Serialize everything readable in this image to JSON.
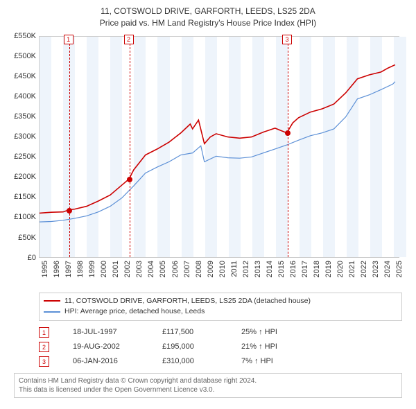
{
  "title_line1": "11, COTSWOLD DRIVE, GARFORTH, LEEDS, LS25 2DA",
  "title_line2": "Price paid vs. HM Land Registry's House Price Index (HPI)",
  "chart": {
    "type": "line",
    "xlim": [
      1995,
      2025.5
    ],
    "ylim": [
      0,
      550000
    ],
    "ytick_step": 50000,
    "ylabels": [
      "£0",
      "£50K",
      "£100K",
      "£150K",
      "£200K",
      "£250K",
      "£300K",
      "£350K",
      "£400K",
      "£450K",
      "£500K",
      "£550K"
    ],
    "xlabels": [
      "1995",
      "1996",
      "1997",
      "1998",
      "1999",
      "2000",
      "2001",
      "2002",
      "2003",
      "2004",
      "2005",
      "2006",
      "2007",
      "2008",
      "2009",
      "2010",
      "2011",
      "2012",
      "2013",
      "2014",
      "2015",
      "2016",
      "2017",
      "2018",
      "2019",
      "2020",
      "2021",
      "2022",
      "2023",
      "2024",
      "2025"
    ],
    "band_color": "#eef4fb",
    "grid_color": "#cccccc",
    "series": {
      "property": {
        "label": "11, COTSWOLD DRIVE, GARFORTH, LEEDS, LS25 2DA (detached house)",
        "color": "#cc0000",
        "width": 1.6,
        "data": [
          [
            1995,
            110000
          ],
          [
            1996,
            112000
          ],
          [
            1997,
            113000
          ],
          [
            1997.5,
            118000
          ],
          [
            1998,
            120000
          ],
          [
            1999,
            127000
          ],
          [
            2000,
            140000
          ],
          [
            2001,
            155000
          ],
          [
            2002,
            180000
          ],
          [
            2002.6,
            195000
          ],
          [
            2003,
            218000
          ],
          [
            2004,
            255000
          ],
          [
            2005,
            270000
          ],
          [
            2006,
            287000
          ],
          [
            2007,
            310000
          ],
          [
            2007.8,
            332000
          ],
          [
            2008,
            320000
          ],
          [
            2008.5,
            342000
          ],
          [
            2009,
            283000
          ],
          [
            2009.5,
            300000
          ],
          [
            2010,
            308000
          ],
          [
            2011,
            300000
          ],
          [
            2012,
            297000
          ],
          [
            2013,
            300000
          ],
          [
            2014,
            312000
          ],
          [
            2015,
            322000
          ],
          [
            2016,
            310000
          ],
          [
            2016.5,
            335000
          ],
          [
            2017,
            348000
          ],
          [
            2018,
            362000
          ],
          [
            2019,
            370000
          ],
          [
            2020,
            382000
          ],
          [
            2021,
            410000
          ],
          [
            2022,
            445000
          ],
          [
            2023,
            455000
          ],
          [
            2024,
            462000
          ],
          [
            2024.6,
            472000
          ],
          [
            2025.2,
            480000
          ]
        ]
      },
      "hpi": {
        "label": "HPI: Average price, detached house, Leeds",
        "color": "#5b8fd6",
        "width": 1.2,
        "data": [
          [
            1995,
            88000
          ],
          [
            1996,
            89000
          ],
          [
            1997,
            92000
          ],
          [
            1998,
            97000
          ],
          [
            1999,
            103000
          ],
          [
            2000,
            113000
          ],
          [
            2001,
            127000
          ],
          [
            2002,
            148000
          ],
          [
            2003,
            178000
          ],
          [
            2004,
            210000
          ],
          [
            2005,
            225000
          ],
          [
            2006,
            238000
          ],
          [
            2007,
            255000
          ],
          [
            2008,
            260000
          ],
          [
            2008.7,
            278000
          ],
          [
            2009,
            238000
          ],
          [
            2010,
            252000
          ],
          [
            2011,
            248000
          ],
          [
            2012,
            247000
          ],
          [
            2013,
            250000
          ],
          [
            2014,
            260000
          ],
          [
            2015,
            270000
          ],
          [
            2016,
            280000
          ],
          [
            2017,
            292000
          ],
          [
            2018,
            303000
          ],
          [
            2019,
            310000
          ],
          [
            2020,
            320000
          ],
          [
            2021,
            350000
          ],
          [
            2022,
            395000
          ],
          [
            2023,
            405000
          ],
          [
            2024,
            418000
          ],
          [
            2025,
            432000
          ],
          [
            2025.2,
            438000
          ]
        ]
      }
    },
    "transactions": [
      {
        "n": "1",
        "xyear": 1997.5,
        "price": 118000,
        "date": "18-JUL-1997",
        "price_str": "£117,500",
        "diff": "25% ↑ HPI",
        "color": "#cc0000"
      },
      {
        "n": "2",
        "xyear": 2002.6,
        "price": 195000,
        "date": "19-AUG-2002",
        "price_str": "£195,000",
        "diff": "21% ↑ HPI",
        "color": "#cc0000"
      },
      {
        "n": "3",
        "xyear": 2016.0,
        "price": 310000,
        "date": "06-JAN-2016",
        "price_str": "£310,000",
        "diff": "7% ↑ HPI",
        "color": "#cc0000"
      }
    ]
  },
  "footer_line1": "Contains HM Land Registry data © Crown copyright and database right 2024.",
  "footer_line2": "This data is licensed under the Open Government Licence v3.0."
}
